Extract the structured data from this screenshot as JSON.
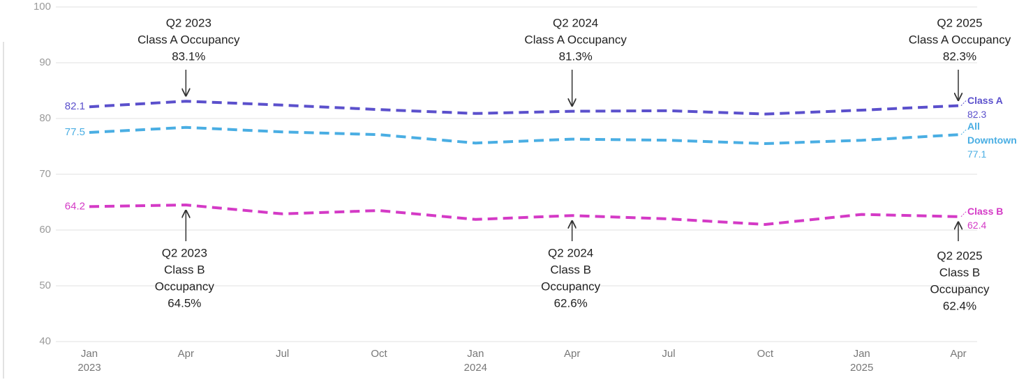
{
  "chart_data": {
    "type": "line",
    "categories": [
      "Jan 2023",
      "Apr",
      "Jul",
      "Oct",
      "Jan 2024",
      "Apr",
      "Jul",
      "Oct",
      "Jan 2025",
      "Apr"
    ],
    "series": [
      {
        "name": "Class A",
        "color": "#5b50cc",
        "values": [
          82.1,
          83.1,
          82.4,
          81.6,
          80.9,
          81.3,
          81.4,
          80.8,
          81.5,
          82.3
        ]
      },
      {
        "name": "All Downtown",
        "color": "#4aaee3",
        "values": [
          77.5,
          78.4,
          77.6,
          77.1,
          75.6,
          76.3,
          76.1,
          75.5,
          76.1,
          77.1
        ]
      },
      {
        "name": "Class B",
        "color": "#d43ac6",
        "values": [
          64.2,
          64.5,
          62.9,
          63.5,
          61.9,
          62.6,
          62.0,
          61.0,
          62.8,
          62.4
        ]
      }
    ],
    "ylim": [
      40,
      100
    ],
    "yticks": [
      40,
      50,
      60,
      70,
      80,
      90,
      100
    ],
    "grid": true,
    "annotations": [
      {
        "lines": [
          "Q2 2023",
          "Class A Occupancy",
          "83.1%"
        ]
      },
      {
        "lines": [
          "Q2 2024",
          "Class A Occupancy",
          "81.3%"
        ]
      },
      {
        "lines": [
          "Q2 2025",
          "Class A Occupancy",
          "82.3%"
        ]
      },
      {
        "lines": [
          "Q2 2023",
          "Class B",
          "Occupancy",
          "64.5%"
        ]
      },
      {
        "lines": [
          "Q2 2024",
          "Class B",
          "Occupancy",
          "62.6%"
        ]
      },
      {
        "lines": [
          "Q2 2025",
          "Class B",
          "Occupancy",
          "62.4%"
        ]
      }
    ]
  }
}
